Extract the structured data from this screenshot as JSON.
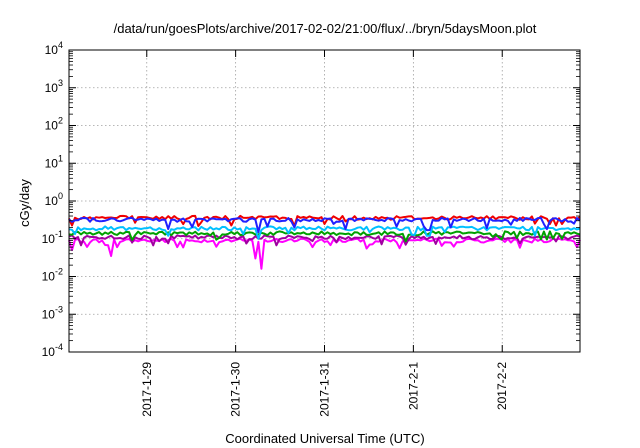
{
  "chart_data": {
    "type": "line",
    "title": "/data/run/goesPlots/archive/2017-02-02/21:00/flux/../bryn/5daysMoon.plot",
    "xlabel": "Coordinated Universal Time (UTC)",
    "ylabel": "cGy/day",
    "yscale": "log",
    "ylim": [
      0.0001,
      10000
    ],
    "xlim": [
      "2017-01-28T03:00",
      "2017-02-02T21:00"
    ],
    "grid": true,
    "legend": "none",
    "x_ticks": [
      {
        "label": "2017-1-29",
        "value": "2017-01-29T00:00"
      },
      {
        "label": "2017-1-30",
        "value": "2017-01-30T00:00"
      },
      {
        "label": "2017-1-31",
        "value": "2017-01-31T00:00"
      },
      {
        "label": "2017-2-1",
        "value": "2017-02-01T00:00"
      },
      {
        "label": "2017-2-2",
        "value": "2017-02-02T00:00"
      }
    ],
    "y_ticks": [
      {
        "base": "10",
        "exp": "4",
        "value": 10000
      },
      {
        "base": "10",
        "exp": "3",
        "value": 1000
      },
      {
        "base": "10",
        "exp": "2",
        "value": 100
      },
      {
        "base": "10",
        "exp": "1",
        "value": 10
      },
      {
        "base": "10",
        "exp": "0",
        "value": 1
      },
      {
        "base": "10",
        "exp": "-1",
        "value": 0.1
      },
      {
        "base": "10",
        "exp": "-2",
        "value": 0.01
      },
      {
        "base": "10",
        "exp": "-3",
        "value": 0.001
      },
      {
        "base": "10",
        "exp": "-4",
        "value": 0.0001
      }
    ],
    "series": [
      {
        "color": "#ff00ff",
        "level": 0.09,
        "dips": [
          [
            "2017-01-28T04:00",
            0.05
          ],
          [
            "2017-01-28T14:00",
            0.035
          ],
          [
            "2017-01-29T08:00",
            0.06
          ],
          [
            "2017-01-30T05:00",
            0.03
          ],
          [
            "2017-01-30T07:00",
            0.016
          ],
          [
            "2017-01-30T21:00",
            0.06
          ],
          [
            "2017-01-31T12:00",
            0.07
          ],
          [
            "2017-02-01T08:00",
            0.065
          ],
          [
            "2017-02-02T20:00",
            0.06
          ]
        ]
      },
      {
        "color": "#a000a0",
        "level": 0.11,
        "dips": []
      },
      {
        "color": "#00a000",
        "level": 0.14,
        "dips": []
      },
      {
        "color": "#00c0ff",
        "level": 0.19,
        "dips": [
          [
            "2017-01-29T06:00",
            0.12
          ],
          [
            "2017-01-30T06:00",
            0.1
          ],
          [
            "2017-02-01T04:00",
            0.12
          ]
        ]
      },
      {
        "color": "#f00000",
        "level": 0.36,
        "dips": []
      },
      {
        "color": "#2020ff",
        "level": 0.32,
        "dips": [
          [
            "2017-01-29T06:00",
            0.18
          ],
          [
            "2017-01-30T06:00",
            0.15
          ],
          [
            "2017-01-30T16:00",
            0.2
          ],
          [
            "2017-01-31T06:00",
            0.18
          ],
          [
            "2017-02-01T04:00",
            0.17
          ],
          [
            "2017-02-01T20:00",
            0.19
          ],
          [
            "2017-02-02T12:00",
            0.18
          ]
        ]
      }
    ]
  }
}
